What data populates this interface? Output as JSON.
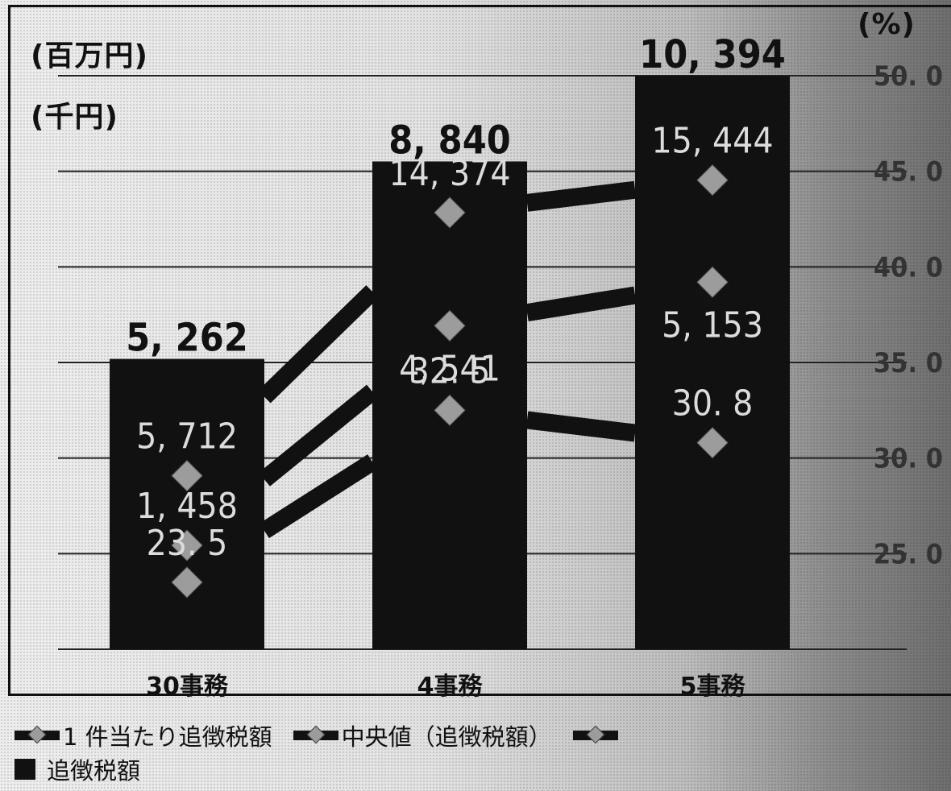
{
  "chart_data": {
    "type": "bar+line",
    "categories": [
      "30事務",
      "4事務",
      "5事務"
    ],
    "bar_series": {
      "name": "追徴税額",
      "unit": "(百万円)",
      "values": [
        5262,
        8840,
        10394
      ],
      "labels": [
        "5, 262",
        "8, 840",
        "10, 394"
      ],
      "color": "#111111"
    },
    "line_series": [
      {
        "name": "1 件当たり追徴税額",
        "unit": "(千円)",
        "values": [
          5712,
          14374,
          15444
        ],
        "labels": [
          "5, 712",
          "14, 374",
          "15, 444"
        ]
      },
      {
        "name": "中央値（追徴税額）",
        "unit": "(千円)",
        "values": [
          1458,
          4541,
          5153
        ],
        "labels": [
          "1, 458",
          "4, 541",
          "5, 153"
        ]
      },
      {
        "name": "",
        "unit": "(%)",
        "axis": "right",
        "values": [
          23.5,
          32.5,
          30.8
        ],
        "labels": [
          "23. 5",
          "32. 5",
          "30. 8"
        ]
      }
    ],
    "left_units": [
      "(百万円)",
      "(千円)"
    ],
    "right_axis": {
      "unit": "(%)",
      "ticks": [
        25.0,
        30.0,
        35.0,
        40.0,
        45.0,
        50.0
      ],
      "tick_labels": [
        "25. 0",
        "30. 0",
        "35. 0",
        "40. 0",
        "45. 0",
        "50. 0"
      ],
      "range": [
        20.0,
        50.0
      ]
    },
    "legend_position": "bottom",
    "grid": true,
    "colors": {
      "bar": "#111111",
      "line": "#111111",
      "marker": "#9c9c9c"
    }
  }
}
